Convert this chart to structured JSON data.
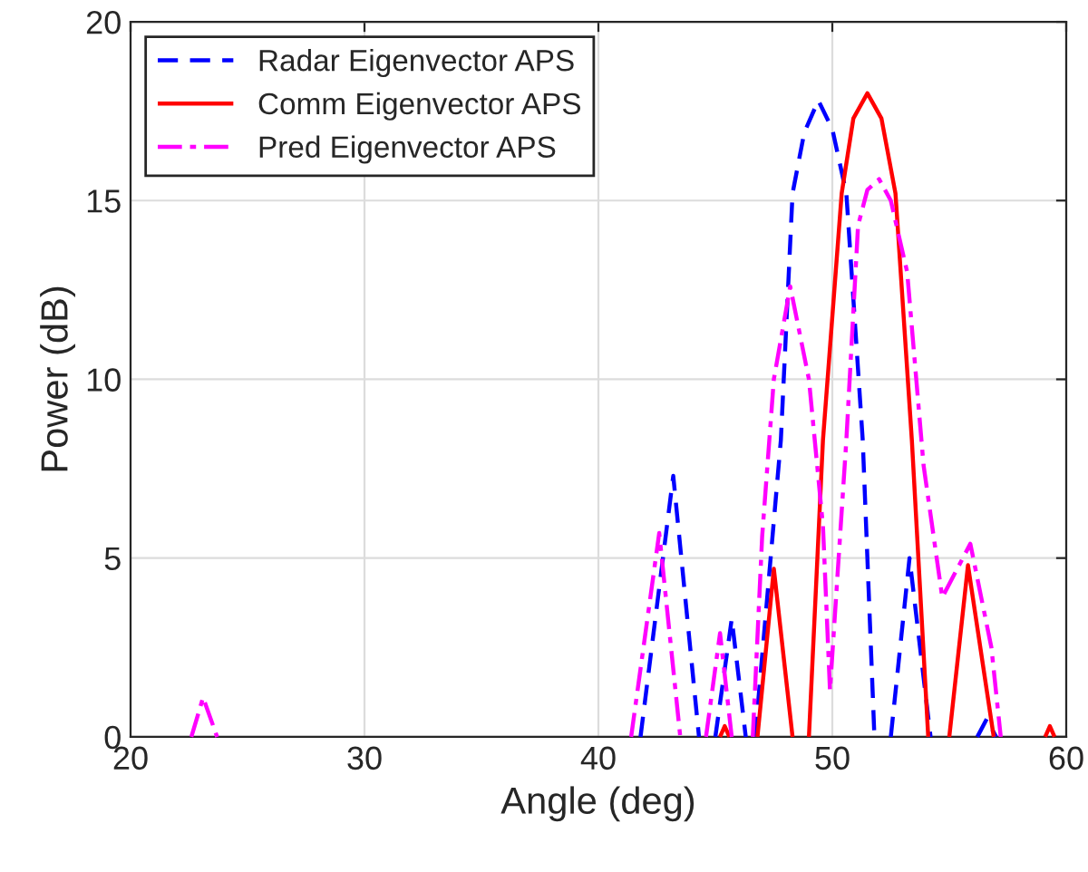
{
  "chart_data": {
    "type": "line",
    "xlabel": "Angle (deg)",
    "ylabel": "Power (dB)",
    "xlim": [
      20,
      60
    ],
    "ylim": [
      0,
      20
    ],
    "xticks": [
      20,
      30,
      40,
      50,
      60
    ],
    "yticks": [
      0,
      5,
      10,
      15,
      20
    ],
    "grid": true,
    "legend": "top left",
    "marker": "none",
    "series": [
      {
        "name": "Radar Eigenvector APS",
        "color": "#0000ff",
        "line_style": "dashed",
        "x": [
          41.8,
          43.2,
          44.3,
          44.4,
          45.0,
          45.7,
          46.3,
          46.4,
          46.7,
          47.8,
          48.3,
          48.8,
          49.4,
          50.0,
          50.6,
          51.3,
          51.8,
          51.9,
          52.5,
          53.3,
          54.2,
          54.3,
          56.2,
          56.6,
          57.0
        ],
        "values": [
          0,
          7.3,
          0,
          null,
          0,
          3.3,
          0,
          null,
          0,
          8.3,
          15.2,
          16.9,
          17.8,
          17.0,
          15.2,
          8.3,
          0,
          null,
          0,
          5.0,
          0,
          null,
          0,
          0.5,
          0
        ]
      },
      {
        "name": "Comm Eigenvector APS",
        "color": "#ff0000",
        "line_style": "solid",
        "x": [
          45.2,
          45.4,
          45.6,
          45.7,
          46.8,
          47.5,
          48.3,
          48.4,
          49.0,
          49.6,
          50.4,
          50.9,
          51.5,
          52.1,
          52.7,
          53.4,
          54.1,
          54.2,
          55.0,
          55.8,
          56.9,
          57.0,
          59.1,
          59.3,
          59.5
        ],
        "values": [
          0,
          0.3,
          0,
          null,
          0,
          4.7,
          0,
          null,
          0,
          8.3,
          15.2,
          17.3,
          18.0,
          17.3,
          15.2,
          8.3,
          0,
          null,
          0,
          4.8,
          0,
          null,
          0,
          0.3,
          0
        ]
      },
      {
        "name": "Pred Eigenvector APS",
        "color": "#ff00ff",
        "line_style": "dashdot",
        "x": [
          22.6,
          23.1,
          23.7,
          23.8,
          41.4,
          42.6,
          43.5,
          43.6,
          44.6,
          45.2,
          45.7,
          45.8,
          46.6,
          47.0,
          47.5,
          48.2,
          49.0,
          49.6,
          49.9,
          50.6,
          51.1,
          51.5,
          52.0,
          52.5,
          53.2,
          53.9,
          54.7,
          55.9,
          56.8,
          57.2
        ],
        "values": [
          0,
          1.1,
          0,
          null,
          0,
          5.7,
          0,
          null,
          0,
          2.9,
          0,
          null,
          0,
          5.6,
          10.0,
          12.6,
          10.0,
          5.9,
          1.3,
          8.3,
          14.3,
          15.3,
          15.6,
          15.0,
          13.0,
          7.6,
          3.9,
          5.4,
          2.5,
          0
        ]
      }
    ]
  }
}
